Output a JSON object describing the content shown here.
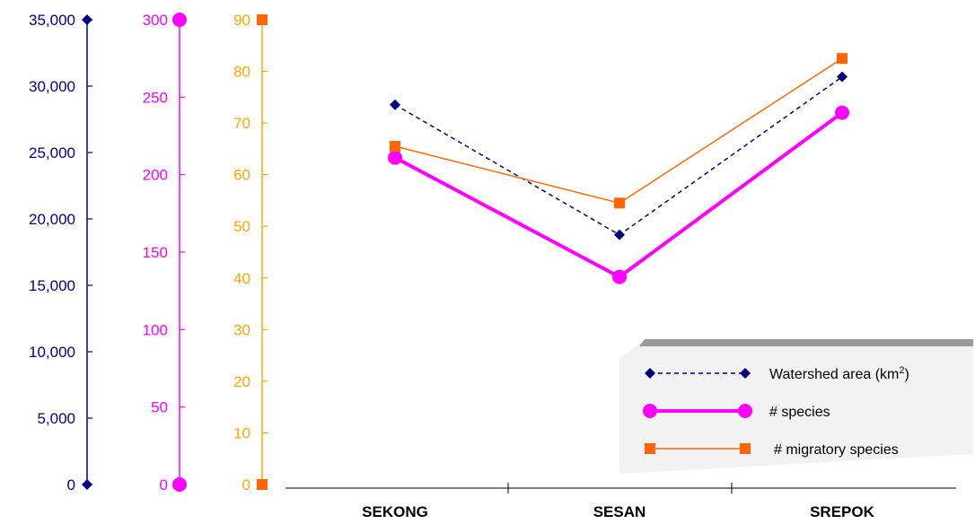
{
  "chart_data": {
    "type": "line",
    "categories": [
      "SEKONG",
      "SESAN",
      "SREPOK"
    ],
    "axes": [
      {
        "id": "area",
        "min": 0,
        "max": 35000,
        "step": 5000,
        "ticks": [
          "0",
          "5,000",
          "10,000",
          "15,000",
          "20,000",
          "25,000",
          "30,000",
          "35,000"
        ],
        "color": "#000080"
      },
      {
        "id": "species",
        "min": 0,
        "max": 300,
        "step": 50,
        "ticks": [
          "0",
          "50",
          "100",
          "150",
          "200",
          "250",
          "300"
        ],
        "color": "#ff00ff"
      },
      {
        "id": "migratory",
        "min": 0,
        "max": 90,
        "step": 10,
        "ticks": [
          "0",
          "10",
          "20",
          "30",
          "40",
          "50",
          "60",
          "70",
          "80",
          "90"
        ],
        "color": "#ffa500"
      }
    ],
    "series": [
      {
        "name": "Watershed area (km",
        "name_sup": "2",
        "name_suffix": ")",
        "axis": "area",
        "values": [
          28600,
          18800,
          30700
        ],
        "color": "#000080",
        "style": "dashed",
        "marker": "diamond"
      },
      {
        "name": "# species",
        "axis": "species",
        "values": [
          211,
          134,
          240
        ],
        "color": "#ff00ff",
        "style": "solid-thick",
        "marker": "circle"
      },
      {
        "name": "# migratory species",
        "axis": "migratory",
        "values": [
          65.5,
          54.5,
          82.5
        ],
        "color": "#ff6600",
        "style": "solid",
        "marker": "square"
      }
    ],
    "legend_position": "bottom-right",
    "grid": false
  }
}
